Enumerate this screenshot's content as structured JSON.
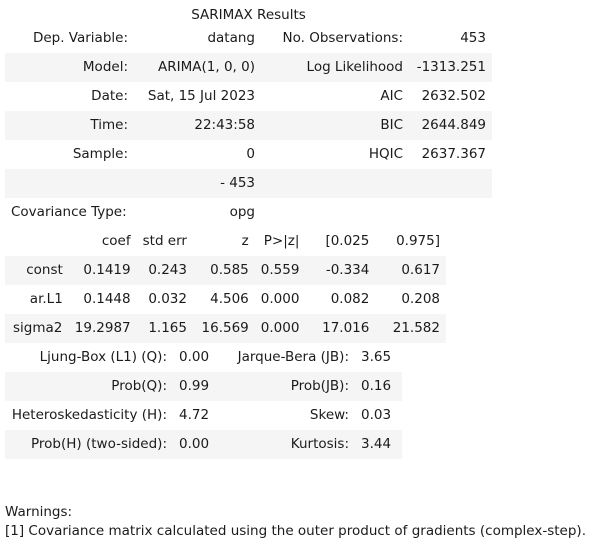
{
  "title": "SARIMAX Results",
  "summary": {
    "rows": [
      [
        "Dep. Variable:",
        "datang",
        "No. Observations:",
        "453"
      ],
      [
        "Model:",
        "ARIMA(1, 0, 0)",
        "Log Likelihood",
        "-1313.251"
      ],
      [
        "Date:",
        "Sat, 15 Jul 2023",
        "AIC",
        "2632.502"
      ],
      [
        "Time:",
        "22:43:58",
        "BIC",
        "2644.849"
      ],
      [
        "Sample:",
        "0",
        "HQIC",
        "2637.367"
      ],
      [
        "",
        "- 453",
        "",
        ""
      ]
    ],
    "covariance_label": "Covariance Type:",
    "covariance_value": "opg"
  },
  "coefficients": {
    "header": [
      "",
      "coef",
      "std err",
      "z",
      "P>|z|",
      "[0.025",
      "0.975]"
    ],
    "rows": [
      [
        "const",
        "0.1419",
        "0.243",
        "0.585",
        "0.559",
        "-0.334",
        "0.617"
      ],
      [
        "ar.L1",
        "0.1448",
        "0.032",
        "4.506",
        "0.000",
        "0.082",
        "0.208"
      ],
      [
        "sigma2",
        "19.2987",
        "1.165",
        "16.569",
        "0.000",
        "17.016",
        "21.582"
      ]
    ]
  },
  "diagnostics": {
    "rows": [
      [
        "Ljung-Box (L1) (Q):",
        "0.00",
        "Jarque-Bera (JB):",
        "3.65"
      ],
      [
        "Prob(Q):",
        "0.99",
        "Prob(JB):",
        "0.16"
      ],
      [
        "Heteroskedasticity (H):",
        "4.72",
        "Skew:",
        "0.03"
      ],
      [
        "Prob(H) (two-sided):",
        "0.00",
        "Kurtosis:",
        "3.44"
      ]
    ]
  },
  "warnings": {
    "heading": "Warnings:",
    "items": [
      "[1] Covariance matrix calculated using the outer product of gradients (complex-step)."
    ]
  }
}
